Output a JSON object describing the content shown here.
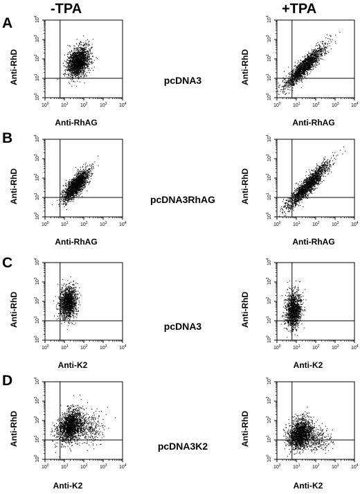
{
  "figure": {
    "columns": [
      "-TPA",
      "+TPA"
    ]
  },
  "chart_data": [
    {
      "type": "scatter",
      "panel": "A",
      "column": "-TPA",
      "construct": "pcDNA3",
      "xlabel": "Anti-RhAG",
      "ylabel": "Anti-RhD",
      "x_scale": "log",
      "y_scale": "log",
      "xlim": [
        1,
        10000
      ],
      "ylim": [
        1,
        10000
      ],
      "x_ticks": [
        "10^0",
        "10^1",
        "10^2",
        "10^3",
        "10^4"
      ],
      "y_ticks": [
        "10^0",
        "10^1",
        "10^2",
        "10^3",
        "10^4"
      ],
      "gates": {
        "x": 6,
        "y": 10
      },
      "clusters": [
        {
          "center": [
            50,
            70
          ],
          "spread_log": [
            0.28,
            0.38
          ],
          "corr": 0.3,
          "n": 1900
        }
      ]
    },
    {
      "type": "scatter",
      "panel": "A",
      "column": "+TPA",
      "construct": "pcDNA3",
      "xlabel": "Anti-RhAG",
      "ylabel": "Anti-RhD",
      "x_scale": "log",
      "y_scale": "log",
      "xlim": [
        1,
        10000
      ],
      "ylim": [
        1,
        10000
      ],
      "x_ticks": [
        "10^0",
        "10^1",
        "10^2",
        "10^3",
        "10^4"
      ],
      "y_ticks": [
        "10^0",
        "10^1",
        "10^2",
        "10^3",
        "10^4"
      ],
      "gates": {
        "x": 6,
        "y": 10
      },
      "clusters": [
        {
          "center": [
            25,
            40
          ],
          "spread_log": [
            0.5,
            0.52
          ],
          "corr": 0.9,
          "n": 1800
        }
      ]
    },
    {
      "type": "scatter",
      "panel": "B",
      "column": "-TPA",
      "construct": "pcDNA3RhAG",
      "xlabel": "Anti-RhAG",
      "ylabel": "Anti-RhD",
      "x_scale": "log",
      "y_scale": "log",
      "xlim": [
        1,
        10000
      ],
      "ylim": [
        1,
        10000
      ],
      "x_ticks": [
        "10^0",
        "10^1",
        "10^2",
        "10^3",
        "10^4"
      ],
      "y_ticks": [
        "10^0",
        "10^1",
        "10^2",
        "10^3",
        "10^4"
      ],
      "gates": {
        "x": 6,
        "y": 10
      },
      "clusters": [
        {
          "center": [
            40,
            45
          ],
          "spread_log": [
            0.32,
            0.38
          ],
          "corr": 0.75,
          "n": 1900
        }
      ]
    },
    {
      "type": "scatter",
      "panel": "B",
      "column": "+TPA",
      "construct": "pcDNA3RhAG",
      "xlabel": "Anti-RhAG",
      "ylabel": "Anti-RhD",
      "x_scale": "log",
      "y_scale": "log",
      "xlim": [
        1,
        10000
      ],
      "ylim": [
        1,
        10000
      ],
      "x_ticks": [
        "10^0",
        "10^1",
        "10^2",
        "10^3",
        "10^4"
      ],
      "y_ticks": [
        "10^0",
        "10^1",
        "10^2",
        "10^3",
        "10^4"
      ],
      "gates": {
        "x": 6,
        "y": 10
      },
      "clusters": [
        {
          "center": [
            40,
            45
          ],
          "spread_log": [
            0.55,
            0.6
          ],
          "corr": 0.92,
          "n": 2000
        }
      ]
    },
    {
      "type": "scatter",
      "panel": "C",
      "column": "-TPA",
      "construct": "pcDNA3",
      "xlabel": "Anti-K2",
      "ylabel": "Anti-RhD",
      "x_scale": "log",
      "y_scale": "log",
      "xlim": [
        1,
        10000
      ],
      "ylim": [
        1,
        10000
      ],
      "x_ticks": [
        "10^0",
        "10^1",
        "10^2",
        "10^3",
        "10^4"
      ],
      "y_ticks": [
        "10^0",
        "10^1",
        "10^2",
        "10^3",
        "10^4"
      ],
      "gates": {
        "x": 6,
        "y": 10
      },
      "clusters": [
        {
          "center": [
            15,
            90
          ],
          "spread_log": [
            0.22,
            0.4
          ],
          "corr": 0.1,
          "n": 1500
        }
      ]
    },
    {
      "type": "scatter",
      "panel": "C",
      "column": "+TPA",
      "construct": "pcDNA3",
      "xlabel": "Anti-K2",
      "ylabel": "Anti-RhD",
      "x_scale": "log",
      "y_scale": "log",
      "xlim": [
        1,
        10000
      ],
      "ylim": [
        1,
        10000
      ],
      "x_ticks": [
        "10^0",
        "10^1",
        "10^2",
        "10^3",
        "10^4"
      ],
      "y_ticks": [
        "10^0",
        "10^1",
        "10^2",
        "10^3",
        "10^4"
      ],
      "gates": {
        "x": 6,
        "y": 10
      },
      "clusters": [
        {
          "center": [
            7,
            35
          ],
          "spread_log": [
            0.2,
            0.45
          ],
          "corr": 0.1,
          "n": 1400
        }
      ]
    },
    {
      "type": "scatter",
      "panel": "D",
      "column": "-TPA",
      "construct": "pcDNA3K2",
      "xlabel": "Anti-K2",
      "ylabel": "Anti-RhD",
      "x_scale": "log",
      "y_scale": "log",
      "xlim": [
        1,
        10000
      ],
      "ylim": [
        1,
        10000
      ],
      "x_ticks": [
        "10^0",
        "10^1",
        "10^2",
        "10^3",
        "10^4"
      ],
      "y_ticks": [
        "10^0",
        "10^1",
        "10^2",
        "10^3",
        "10^4"
      ],
      "gates": {
        "x": 6,
        "y": 10
      },
      "clusters": [
        {
          "center": [
            20,
            55
          ],
          "spread_log": [
            0.32,
            0.42
          ],
          "corr": 0.3,
          "n": 1800
        },
        {
          "center": [
            150,
            40
          ],
          "spread_log": [
            0.45,
            0.4
          ],
          "corr": 0.0,
          "n": 350
        }
      ]
    },
    {
      "type": "scatter",
      "panel": "D",
      "column": "+TPA",
      "construct": "pcDNA3K2",
      "xlabel": "Anti-K2",
      "ylabel": "Anti-RhD",
      "x_scale": "log",
      "y_scale": "log",
      "xlim": [
        1,
        10000
      ],
      "ylim": [
        1,
        10000
      ],
      "x_ticks": [
        "10^0",
        "10^1",
        "10^2",
        "10^3",
        "10^4"
      ],
      "y_ticks": [
        "10^0",
        "10^1",
        "10^2",
        "10^3",
        "10^4"
      ],
      "gates": {
        "x": 6,
        "y": 10
      },
      "clusters": [
        {
          "center": [
            15,
            20
          ],
          "spread_log": [
            0.3,
            0.38
          ],
          "corr": 0.2,
          "n": 1700
        },
        {
          "center": [
            90,
            12
          ],
          "spread_log": [
            0.4,
            0.3
          ],
          "corr": 0.0,
          "n": 350
        }
      ]
    }
  ]
}
